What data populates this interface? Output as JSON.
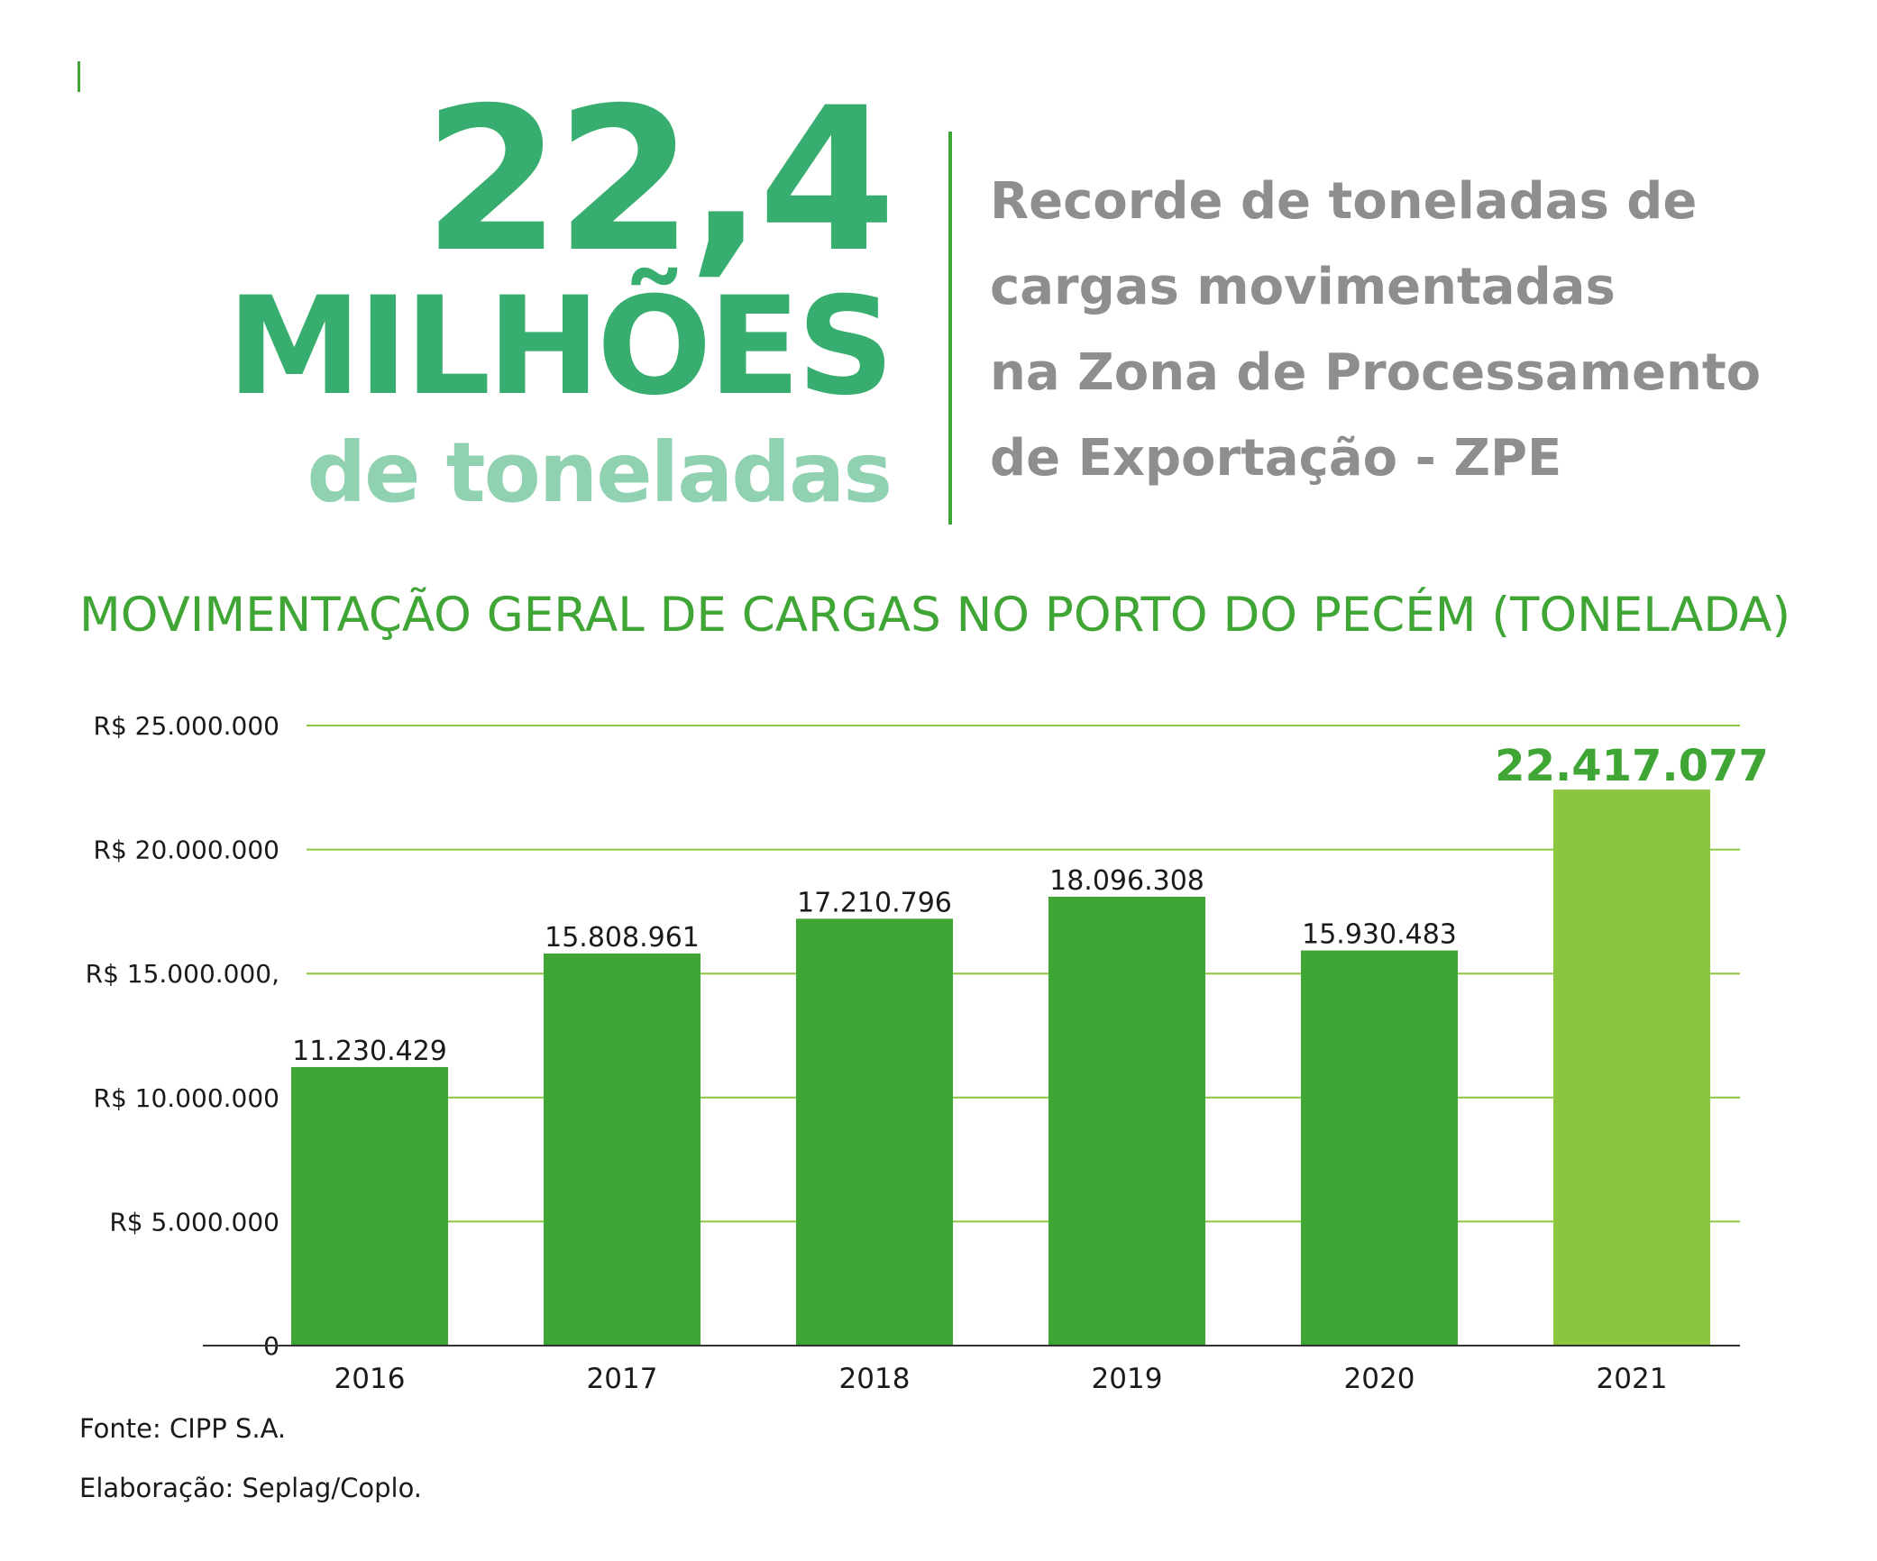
{
  "hero": {
    "number": "22,4",
    "unit": "MILHÕES",
    "sub": "de toneladas"
  },
  "headline": {
    "lines": [
      "Recorde de toneladas de",
      "cargas movimentadas",
      "na  Zona de Processamento",
      "de Exportação - ZPE"
    ]
  },
  "chart_title": "MOVIMENTAÇÃO GERAL DE CARGAS NO PORTO DO PECÉM (TONELADA)",
  "colors": {
    "bar": "#3fa535",
    "highlight_bar": "#8cc63f",
    "grid": "#8cc63f",
    "hero": "#37ae6f",
    "hero_sub": "#8fd1b1",
    "headline": "#8e8e8e"
  },
  "chart_data": {
    "type": "bar",
    "categories": [
      "2016",
      "2017",
      "2018",
      "2019",
      "2020",
      "2021"
    ],
    "values": [
      11230429,
      15808961,
      17210796,
      18096308,
      15930483,
      22417077
    ],
    "value_labels": [
      "11.230.429",
      "15.808.961",
      "17.210.796",
      "18.096.308",
      "15.930.483",
      "22.417.077"
    ],
    "highlight_index": 5,
    "yticks": [
      {
        "value": 0,
        "label": "0"
      },
      {
        "value": 5000000,
        "label": "R$ 5.000.000"
      },
      {
        "value": 10000000,
        "label": "R$ 10.000.000"
      },
      {
        "value": 15000000,
        "label": "R$ 15.000.000,"
      },
      {
        "value": 20000000,
        "label": "R$ 20.000.000"
      },
      {
        "value": 25000000,
        "label": "R$ 25.000.000"
      }
    ],
    "ylim": [
      0,
      25000000
    ],
    "grid": true
  },
  "footer": {
    "source": "Fonte: CIPP S.A.",
    "credit": "Elaboração: Seplag/Coplo."
  }
}
